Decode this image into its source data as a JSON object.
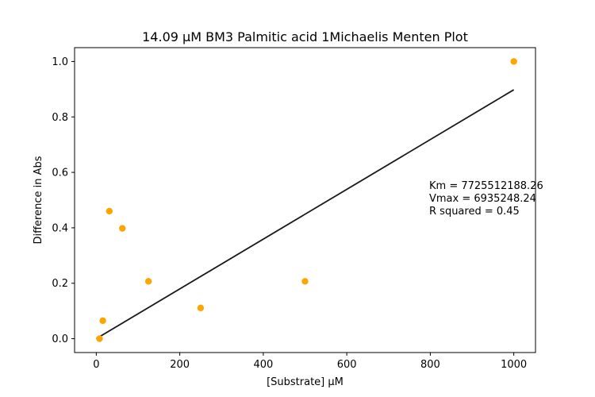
{
  "chart_data": {
    "type": "scatter",
    "title": "14.09 µM BM3 Palmitic acid 1Michaelis Menten Plot",
    "xlabel": "[Substrate] µM",
    "ylabel": "Difference in Abs",
    "xlim": [
      -52,
      1052
    ],
    "ylim": [
      -0.05,
      1.05
    ],
    "x_ticks": [
      0,
      200,
      400,
      600,
      800,
      1000
    ],
    "x_tick_labels": [
      "0",
      "200",
      "400",
      "600",
      "800",
      "1000"
    ],
    "y_ticks": [
      0.0,
      0.2,
      0.4,
      0.6,
      0.8,
      1.0
    ],
    "y_tick_labels": [
      "0.0",
      "0.2",
      "0.4",
      "0.6",
      "0.8",
      "1.0"
    ],
    "grid": false,
    "points": {
      "color": "#ffa500",
      "x": [
        7.8,
        15.6,
        31.25,
        62.5,
        125,
        250,
        500,
        1000
      ],
      "y": [
        0.0,
        0.065,
        0.46,
        0.398,
        0.207,
        0.111,
        0.207,
        1.0
      ]
    },
    "fit_line": {
      "color": "#1a1a1a",
      "x": [
        0,
        1000
      ],
      "y": [
        0.0,
        0.898
      ]
    },
    "annotation": [
      "Km = 7725512188.26",
      "Vmax = 6935248.24",
      "R squared = 0.45"
    ]
  }
}
